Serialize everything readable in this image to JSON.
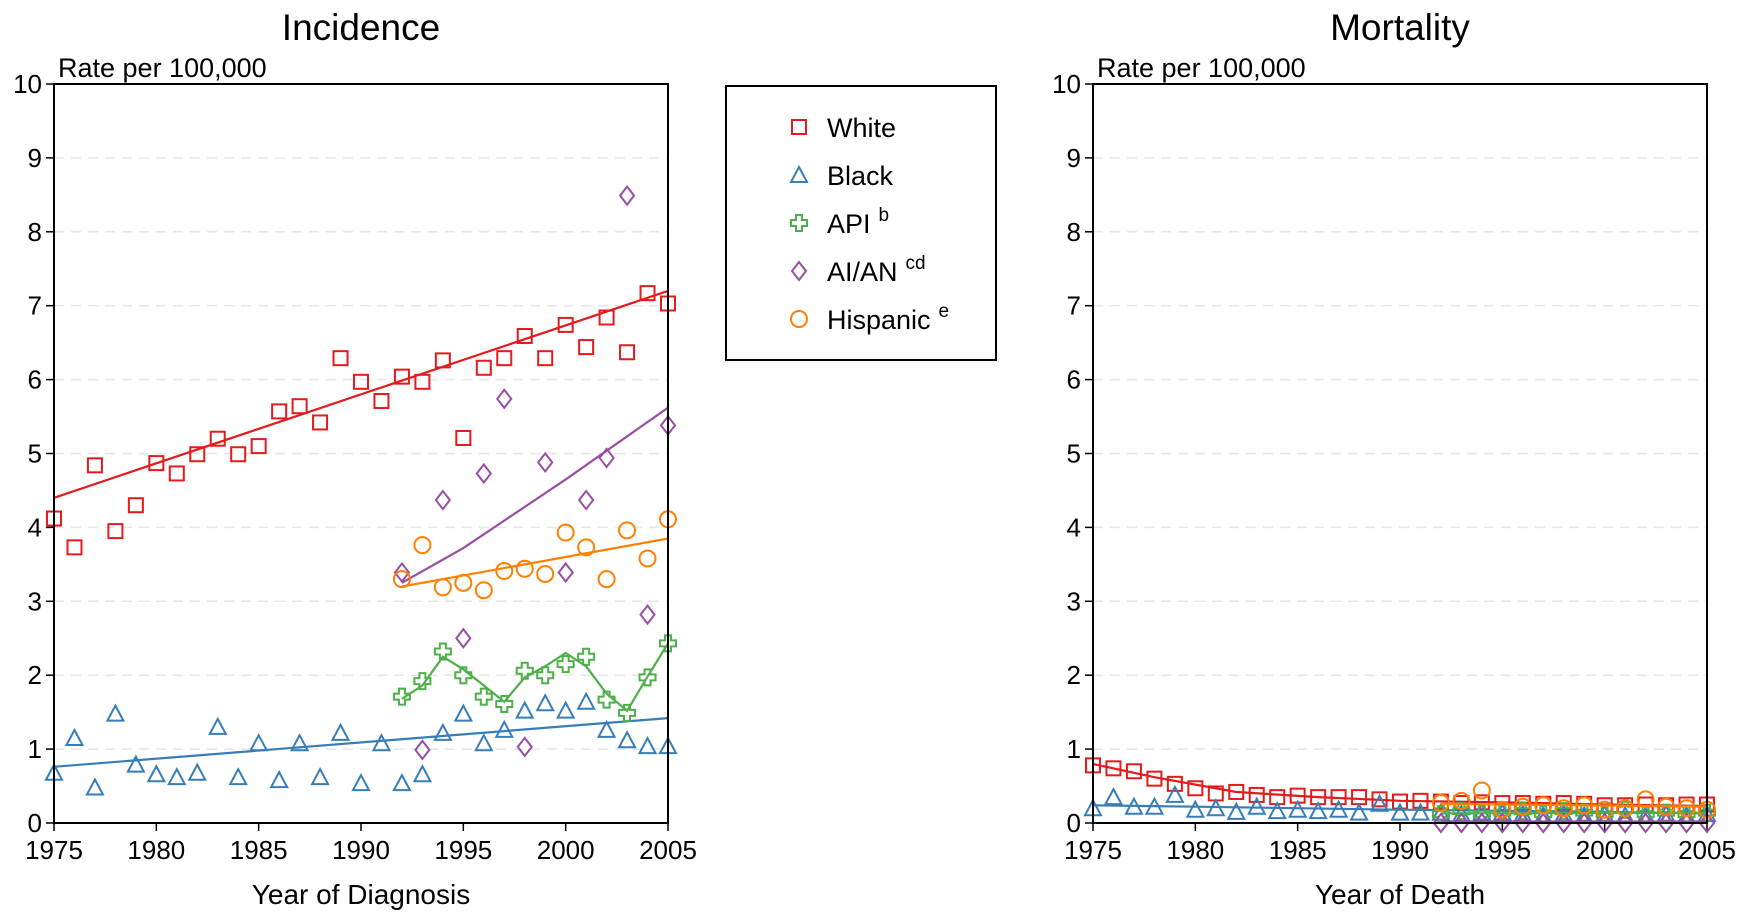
{
  "colors": {
    "White": "#e41a1c",
    "Black": "#377eb8",
    "API": "#4daf4a",
    "AI/AN": "#984ea3",
    "Hispanic": "#ff7f00"
  },
  "legend": {
    "placement": "between-panels-top",
    "items": [
      {
        "key": "White",
        "label": "White",
        "sup": "",
        "marker": "square"
      },
      {
        "key": "Black",
        "label": "Black",
        "sup": "",
        "marker": "triangle"
      },
      {
        "key": "API",
        "label": "API",
        "sup": "b",
        "marker": "cross"
      },
      {
        "key": "AI/AN",
        "label": "AI/AN",
        "sup": "cd",
        "marker": "diamond"
      },
      {
        "key": "Hispanic",
        "label": "Hispanic",
        "sup": "e",
        "marker": "circle"
      }
    ]
  },
  "chart_data": [
    {
      "type": "scatter",
      "title": "Incidence",
      "ylabel": "Rate per 100,000",
      "xlabel": "Year of Diagnosis",
      "xlim": [
        1975,
        2005
      ],
      "ylim": [
        0,
        10
      ],
      "xticks": [
        1975,
        1980,
        1985,
        1990,
        1995,
        2000,
        2005
      ],
      "yticks": [
        0,
        1,
        2,
        3,
        4,
        5,
        6,
        7,
        8,
        9,
        10
      ],
      "grid": "horizontal-dashed",
      "series": [
        {
          "name": "White",
          "x": [
            1975,
            1976,
            1977,
            1978,
            1979,
            1980,
            1981,
            1982,
            1983,
            1984,
            1985,
            1986,
            1987,
            1988,
            1989,
            1990,
            1991,
            1992,
            1993,
            1994,
            1995,
            1996,
            1997,
            1998,
            1999,
            2000,
            2001,
            2002,
            2003,
            2004,
            2005
          ],
          "y": [
            4.12,
            3.73,
            4.84,
            3.95,
            4.3,
            4.87,
            4.73,
            4.99,
            5.2,
            4.99,
            5.1,
            5.57,
            5.64,
            5.42,
            6.29,
            5.97,
            5.71,
            6.04,
            5.97,
            6.26,
            5.21,
            6.16,
            6.29,
            6.59,
            6.29,
            6.74,
            6.44,
            6.84,
            6.37,
            7.17,
            7.03
          ],
          "trend": [
            [
              1975,
              4.4
            ],
            [
              2005,
              7.2
            ]
          ]
        },
        {
          "name": "Black",
          "x": [
            1975,
            1976,
            1977,
            1978,
            1979,
            1980,
            1981,
            1982,
            1983,
            1984,
            1985,
            1986,
            1987,
            1988,
            1989,
            1990,
            1991,
            1992,
            1993,
            1994,
            1995,
            1996,
            1997,
            1998,
            1999,
            2000,
            2001,
            2002,
            2003,
            2004,
            2005
          ],
          "y": [
            0.68,
            1.15,
            0.48,
            1.48,
            0.79,
            0.66,
            0.62,
            0.68,
            1.3,
            0.62,
            1.08,
            0.58,
            1.08,
            0.62,
            1.22,
            0.54,
            1.08,
            0.54,
            0.66,
            1.22,
            1.48,
            1.08,
            1.26,
            1.52,
            1.62,
            1.52,
            1.64,
            1.26,
            1.12,
            1.04,
            1.04
          ],
          "trend": [
            [
              1975,
              0.76
            ],
            [
              2005,
              1.42
            ]
          ]
        },
        {
          "name": "API",
          "x": [
            1992,
            1993,
            1994,
            1995,
            1996,
            1997,
            1998,
            1999,
            2000,
            2001,
            2002,
            2003,
            2004,
            2005
          ],
          "y": [
            1.71,
            1.92,
            2.32,
            2.0,
            1.71,
            1.61,
            2.06,
            2.0,
            2.15,
            2.25,
            1.67,
            1.49,
            1.97,
            2.43
          ],
          "trend": [
            [
              1992,
              1.68
            ],
            [
              1993,
              1.86
            ],
            [
              1994,
              2.25
            ],
            [
              1995,
              2.08
            ],
            [
              1996,
              1.86
            ],
            [
              1997,
              1.64
            ],
            [
              1998,
              1.97
            ],
            [
              1999,
              2.12
            ],
            [
              2000,
              2.3
            ],
            [
              2001,
              2.12
            ],
            [
              2002,
              1.75
            ],
            [
              2003,
              1.52
            ],
            [
              2004,
              1.98
            ],
            [
              2005,
              2.43
            ]
          ]
        },
        {
          "name": "AI/AN",
          "x": [
            1992,
            1993,
            1994,
            1995,
            1996,
            1997,
            1998,
            1999,
            2000,
            2001,
            2002,
            2003,
            2004,
            2005
          ],
          "y": [
            3.39,
            0.99,
            4.37,
            2.5,
            4.73,
            5.74,
            1.03,
            4.88,
            3.39,
            4.37,
            4.94,
            8.49,
            2.82,
            5.38
          ],
          "trend": [
            [
              1992,
              3.25
            ],
            [
              1995,
              3.72
            ],
            [
              2000,
              4.65
            ],
            [
              2005,
              5.62
            ]
          ]
        },
        {
          "name": "Hispanic",
          "x": [
            1992,
            1993,
            1994,
            1995,
            1996,
            1997,
            1998,
            1999,
            2000,
            2001,
            2002,
            2003,
            2004,
            2005
          ],
          "y": [
            3.3,
            3.76,
            3.19,
            3.25,
            3.15,
            3.41,
            3.44,
            3.37,
            3.93,
            3.73,
            3.3,
            3.96,
            3.58,
            4.11
          ],
          "trend": [
            [
              1992,
              3.2
            ],
            [
              1995,
              3.35
            ],
            [
              2000,
              3.6
            ],
            [
              2005,
              3.85
            ]
          ]
        }
      ]
    },
    {
      "type": "scatter",
      "title": "Mortality",
      "ylabel": "Rate per 100,000",
      "xlabel": "Year of Death",
      "xlim": [
        1975,
        2005
      ],
      "ylim": [
        0,
        10
      ],
      "xticks": [
        1975,
        1980,
        1985,
        1990,
        1995,
        2000,
        2005
      ],
      "yticks": [
        0,
        1,
        2,
        3,
        4,
        5,
        6,
        7,
        8,
        9,
        10
      ],
      "grid": "horizontal-dashed",
      "series": [
        {
          "name": "White",
          "x": [
            1975,
            1976,
            1977,
            1978,
            1979,
            1980,
            1981,
            1982,
            1983,
            1984,
            1985,
            1986,
            1987,
            1988,
            1989,
            1990,
            1991,
            1992,
            1993,
            1994,
            1995,
            1996,
            1997,
            1998,
            1999,
            2000,
            2001,
            2002,
            2003,
            2004,
            2005
          ],
          "y": [
            0.78,
            0.74,
            0.7,
            0.6,
            0.53,
            0.47,
            0.4,
            0.42,
            0.38,
            0.35,
            0.37,
            0.35,
            0.35,
            0.35,
            0.32,
            0.29,
            0.3,
            0.29,
            0.27,
            0.28,
            0.27,
            0.27,
            0.26,
            0.27,
            0.26,
            0.24,
            0.24,
            0.25,
            0.24,
            0.25,
            0.25
          ],
          "trend": [
            [
              1975,
              0.8
            ],
            [
              1978,
              0.62
            ],
            [
              1982,
              0.42
            ],
            [
              1986,
              0.35
            ],
            [
              1990,
              0.3
            ],
            [
              1995,
              0.28
            ],
            [
              2000,
              0.25
            ],
            [
              2005,
              0.23
            ]
          ]
        },
        {
          "name": "Black",
          "x": [
            1975,
            1976,
            1977,
            1978,
            1979,
            1980,
            1981,
            1982,
            1983,
            1984,
            1985,
            1986,
            1987,
            1988,
            1989,
            1990,
            1991,
            1992,
            1993,
            1994,
            1995,
            1996,
            1997,
            1998,
            1999,
            2000,
            2001,
            2002,
            2003,
            2004,
            2005
          ],
          "y": [
            0.2,
            0.35,
            0.22,
            0.22,
            0.38,
            0.18,
            0.2,
            0.15,
            0.22,
            0.16,
            0.18,
            0.16,
            0.18,
            0.14,
            0.26,
            0.14,
            0.14,
            0.14,
            0.12,
            0.14,
            0.14,
            0.12,
            0.1,
            0.12,
            0.1,
            0.12,
            0.1,
            0.1,
            0.12,
            0.1,
            0.12
          ],
          "trend": [
            [
              1975,
              0.24
            ],
            [
              1980,
              0.22
            ],
            [
              1990,
              0.18
            ],
            [
              2000,
              0.15
            ],
            [
              2005,
              0.13
            ]
          ]
        },
        {
          "name": "API",
          "x": [
            1992,
            1993,
            1994,
            1995,
            1996,
            1997,
            1998,
            1999,
            2000,
            2001,
            2002,
            2003,
            2004,
            2005
          ],
          "y": [
            0.12,
            0.16,
            0.12,
            0.14,
            0.16,
            0.12,
            0.16,
            0.14,
            0.12,
            0.18,
            0.12,
            0.14,
            0.12,
            0.14
          ],
          "trend": [
            [
              1992,
              0.13
            ],
            [
              2005,
              0.14
            ]
          ]
        },
        {
          "name": "AI/AN",
          "x": [
            1992,
            1993,
            1994,
            1995,
            1996,
            1997,
            1998,
            1999,
            2000,
            2001,
            2002,
            2003,
            2004,
            2005
          ],
          "y": [
            0,
            0,
            0,
            0,
            0,
            0,
            0,
            0,
            0,
            0,
            0,
            0,
            0,
            0
          ],
          "trend": [
            [
              1992,
              0.02
            ],
            [
              2005,
              0.02
            ]
          ]
        },
        {
          "name": "Hispanic",
          "x": [
            1992,
            1993,
            1994,
            1995,
            1996,
            1997,
            1998,
            1999,
            2000,
            2001,
            2002,
            2003,
            2004,
            2005
          ],
          "y": [
            0.27,
            0.3,
            0.44,
            0.18,
            0.22,
            0.24,
            0.2,
            0.24,
            0.18,
            0.2,
            0.32,
            0.22,
            0.2,
            0.18
          ],
          "trend": [
            [
              1992,
              0.26
            ],
            [
              2005,
              0.22
            ]
          ]
        }
      ]
    }
  ]
}
